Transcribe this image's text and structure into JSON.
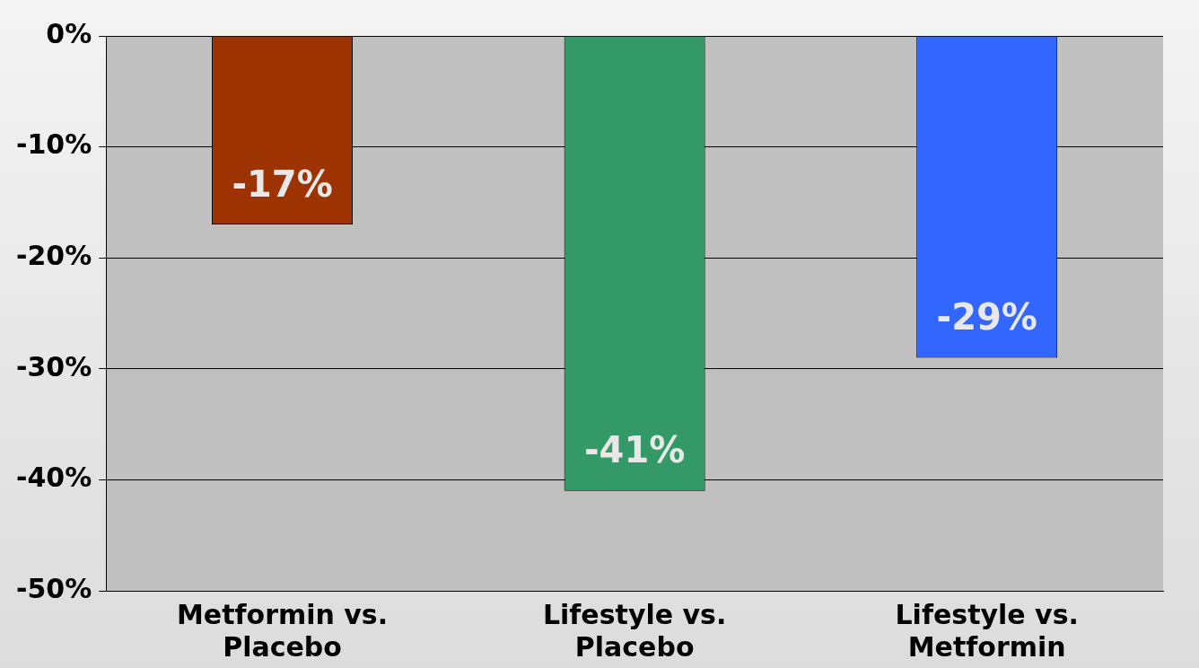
{
  "chart_data": {
    "type": "bar",
    "categories": [
      "Metformin vs.\nPlacebo",
      "Lifestyle vs.\nPlacebo",
      "Lifestyle vs.\nMetformin"
    ],
    "values": [
      -17,
      -41,
      -29
    ],
    "colors": [
      "#9c3300",
      "#339966",
      "#3366ff"
    ],
    "value_labels": [
      "-17%",
      "-41%",
      "-29%"
    ],
    "ylim": [
      -50,
      0
    ],
    "yticks": [
      {
        "value": -50,
        "label": "-50%"
      },
      {
        "value": -40,
        "label": "-40%"
      },
      {
        "value": -30,
        "label": "-30%"
      },
      {
        "value": -20,
        "label": "-20%"
      },
      {
        "value": -10,
        "label": "-10%"
      },
      {
        "value": 0,
        "label": "0%"
      }
    ],
    "grid": "y"
  }
}
